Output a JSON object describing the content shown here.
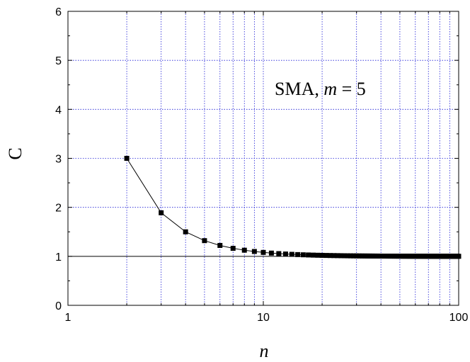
{
  "chart_data": {
    "type": "line",
    "xscale": "log",
    "xlim": [
      1,
      100
    ],
    "ylim": [
      0,
      6
    ],
    "xlabel": "n",
    "ylabel": "C",
    "grid": true,
    "x_ticks": [
      "1",
      "10",
      "100"
    ],
    "y_ticks": [
      "0",
      "1",
      "2",
      "3",
      "4",
      "5",
      "6"
    ],
    "reference_line": {
      "y": 1
    },
    "annotation": {
      "prefix": "SMA, ",
      "var": "m",
      "suffix": " = 5"
    },
    "series": [
      {
        "marker": "square",
        "color": "#000000",
        "formula_note": "C(n) = 1 + 8/n^2 (dense n = 2..100)"
      }
    ]
  },
  "colors": {
    "grid": "#1f1fd6",
    "axis": "#000000",
    "series": "#000000"
  }
}
